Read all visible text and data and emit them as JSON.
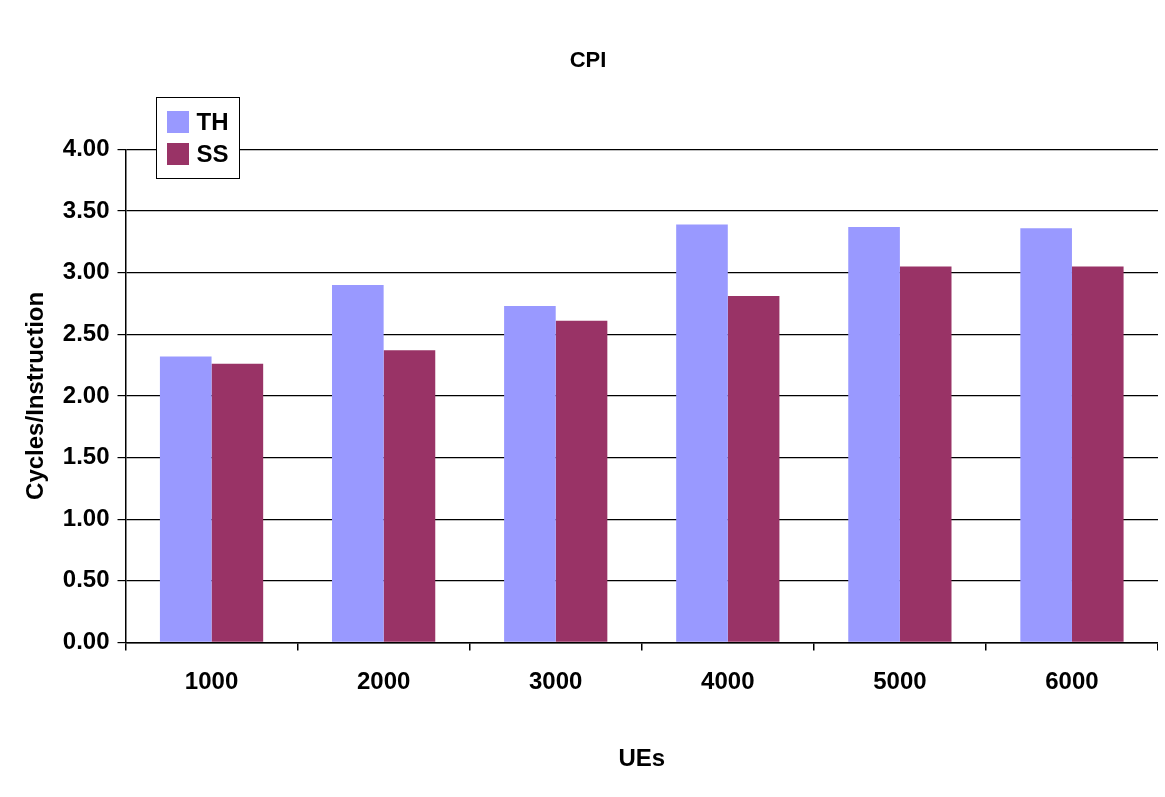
{
  "chart_data": {
    "type": "bar",
    "title": "CPI",
    "xlabel": "UEs",
    "ylabel": "Cycles/Instruction",
    "categories": [
      "1000",
      "2000",
      "3000",
      "4000",
      "5000",
      "6000"
    ],
    "series": [
      {
        "name": "TH",
        "color": "#9999ff",
        "values": [
          2.32,
          2.9,
          2.73,
          3.39,
          3.37,
          3.36
        ]
      },
      {
        "name": "SS",
        "color": "#993366",
        "values": [
          2.26,
          2.37,
          2.61,
          2.81,
          3.05,
          3.05
        ]
      }
    ],
    "ylim": [
      0,
      4
    ],
    "yticks": [
      {
        "value": 0,
        "label": "0.00"
      },
      {
        "value": 0.5,
        "label": "0.50"
      },
      {
        "value": 1,
        "label": "1.00"
      },
      {
        "value": 1.5,
        "label": "1.50"
      },
      {
        "value": 2,
        "label": "2.00"
      },
      {
        "value": 2.5,
        "label": "2.50"
      },
      {
        "value": 3,
        "label": "3.00"
      },
      {
        "value": 3.5,
        "label": "3.50"
      },
      {
        "value": 4,
        "label": "4.00"
      }
    ],
    "grid": "y",
    "legend": "top left"
  }
}
